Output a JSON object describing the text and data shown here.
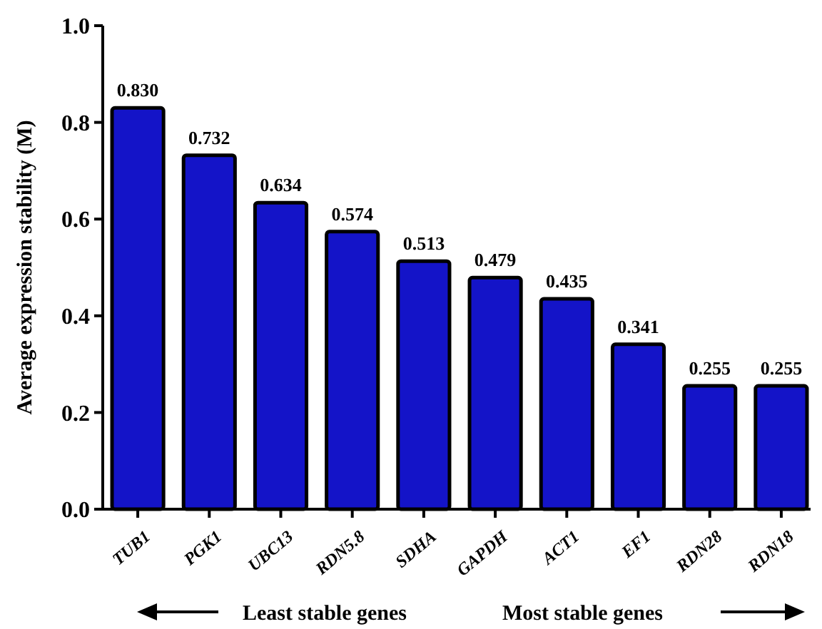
{
  "chart_data": {
    "type": "bar",
    "ylabel": "Average expression stability (M)",
    "categories": [
      "TUB1",
      "PGK1",
      "UBC13",
      "RDN5.8",
      "SDHA",
      "GAPDH",
      "ACT1",
      "EF1",
      "RDN28",
      "RDN18"
    ],
    "values": [
      0.83,
      0.732,
      0.634,
      0.574,
      0.513,
      0.479,
      0.435,
      0.341,
      0.255,
      0.255
    ],
    "value_labels": [
      "0.830",
      "0.732",
      "0.634",
      "0.574",
      "0.513",
      "0.479",
      "0.435",
      "0.341",
      "0.255",
      "0.255"
    ],
    "color": "#1414c8",
    "ylim": [
      0,
      1
    ],
    "yticks": [
      {
        "value": 0,
        "label": "0.0"
      },
      {
        "value": 0.2,
        "label": "0.2"
      },
      {
        "value": 0.4,
        "label": "0.4"
      },
      {
        "value": 0.6,
        "label": "0.6"
      },
      {
        "value": 0.8,
        "label": "0.8"
      },
      {
        "value": 1,
        "label": "1.0"
      }
    ],
    "grid": false,
    "annotations": [
      "Least stable genes",
      "Most stable genes"
    ]
  }
}
